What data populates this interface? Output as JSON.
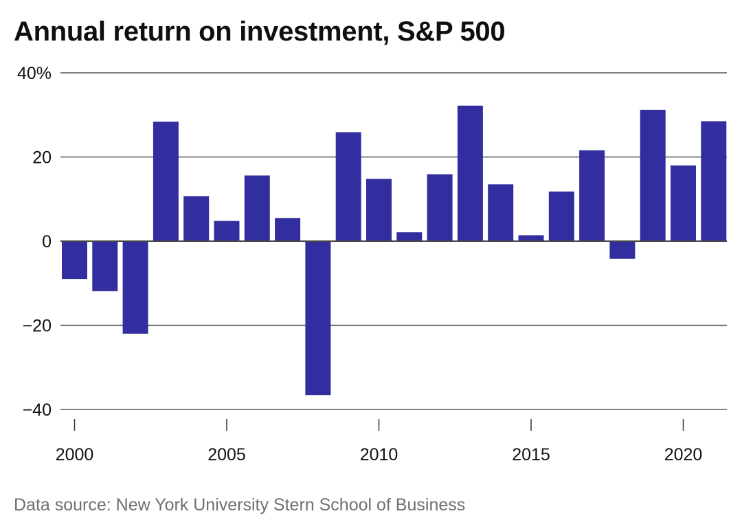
{
  "chart_data": {
    "type": "bar",
    "title": "Annual return on investment, S&P 500",
    "xlabel": "",
    "ylabel": "",
    "categories": [
      2000,
      2001,
      2002,
      2003,
      2004,
      2005,
      2006,
      2007,
      2008,
      2009,
      2010,
      2011,
      2012,
      2013,
      2014,
      2015,
      2016,
      2017,
      2018,
      2019,
      2020,
      2021
    ],
    "values": [
      -9.0,
      -11.9,
      -22.0,
      28.4,
      10.7,
      4.8,
      15.6,
      5.5,
      -36.6,
      25.9,
      14.8,
      2.1,
      15.9,
      32.2,
      13.5,
      1.4,
      11.8,
      21.6,
      -4.2,
      31.2,
      18.0,
      28.5
    ],
    "ylim": [
      -40,
      40
    ],
    "yticks": [
      -40,
      -20,
      0,
      20,
      40
    ],
    "ytick_labels": [
      "−40",
      "−20",
      "0",
      "20",
      "40%"
    ],
    "xticks": [
      2000,
      2005,
      2010,
      2015,
      2020
    ],
    "xtick_labels": [
      "2000",
      "2005",
      "2010",
      "2015",
      "2020"
    ],
    "bar_color": "#332e9f",
    "grid_color": "#555555",
    "grid": true
  },
  "source": "Data source: New York University Stern School of Business"
}
